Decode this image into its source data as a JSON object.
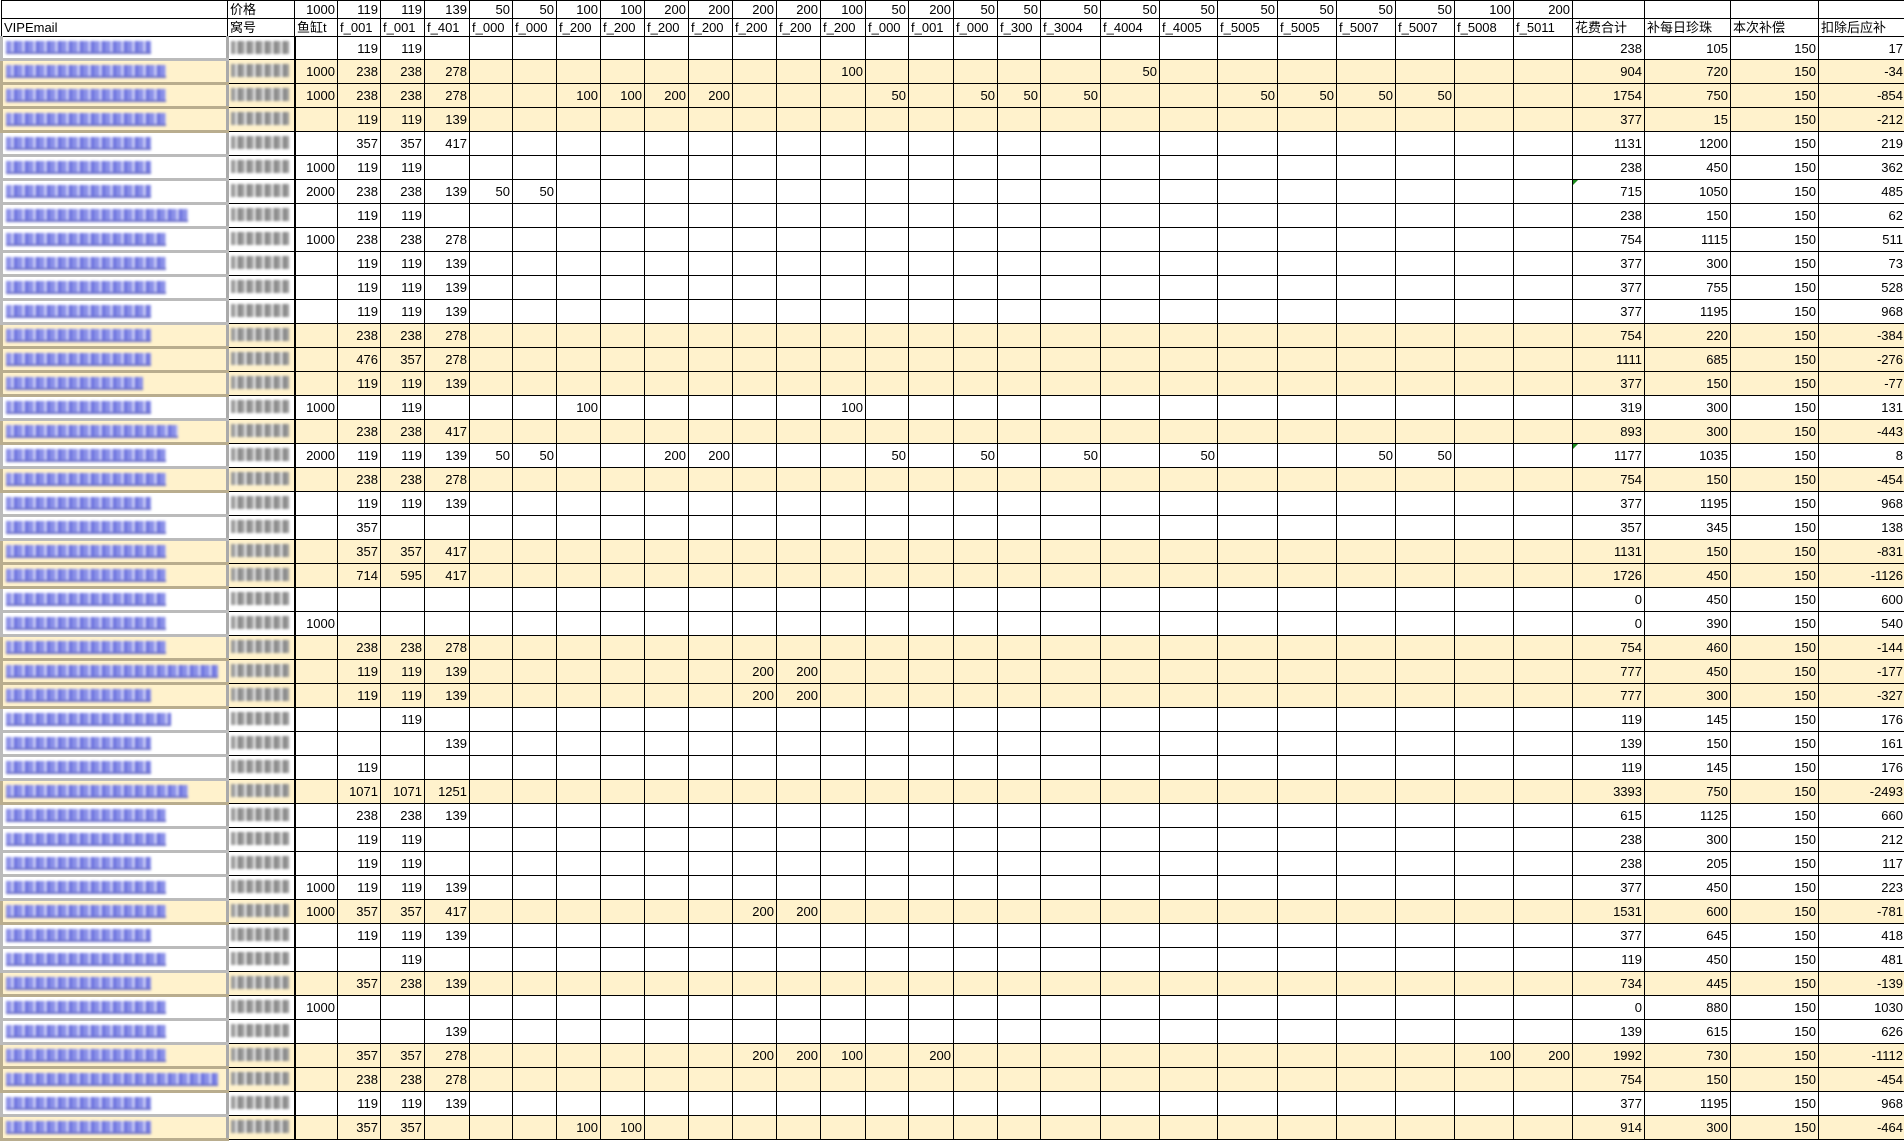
{
  "header": {
    "price_label": "价格",
    "email_label": "VIPEmail",
    "nest_label": "窝号",
    "prices": [
      1000,
      119,
      119,
      139,
      50,
      50,
      100,
      100,
      200,
      200,
      200,
      200,
      100,
      50,
      200,
      50,
      50,
      50,
      50,
      50,
      50,
      50,
      50,
      50,
      100,
      200
    ],
    "items": [
      "鱼缸t",
      "f_001",
      "f_001",
      "f_401",
      "f_000",
      "f_000",
      "f_200",
      "f_200",
      "f_200",
      "f_200",
      "f_200",
      "f_200",
      "f_200",
      "f_000",
      "f_001",
      "f_000",
      "f_300",
      "f_3004",
      "f_4004",
      "f_4005",
      "f_5005",
      "f_5005",
      "f_5007",
      "f_5007",
      "f_5008",
      "f_5011"
    ],
    "summary": [
      "花费合计",
      "补每日珍珠",
      "本次补偿",
      "扣除后应补"
    ]
  },
  "colors": {
    "highlight": "#fff2cc",
    "link": "#6a70dd",
    "marker": "#1a8a1a"
  },
  "rows": [
    {
      "hl": false,
      "cells": {
        "1": 119,
        "2": 119
      },
      "sum": [
        238,
        105,
        150,
        17
      ]
    },
    {
      "hl": true,
      "cells": {
        "0": 1000,
        "1": 238,
        "2": 238,
        "3": 278,
        "12": 100,
        "18": 50
      },
      "sum": [
        904,
        720,
        150,
        -34
      ]
    },
    {
      "hl": true,
      "cells": {
        "0": 1000,
        "1": 238,
        "2": 238,
        "3": 278,
        "6": 100,
        "7": 100,
        "8": 200,
        "9": 200,
        "13": 50,
        "15": 50,
        "16": 50,
        "17": 50,
        "20": 50,
        "21": 50,
        "22": 50,
        "23": 50
      },
      "sum": [
        1754,
        750,
        150,
        -854
      ]
    },
    {
      "hl": true,
      "cells": {
        "1": 119,
        "2": 119,
        "3": 139
      },
      "sum": [
        377,
        15,
        150,
        -212
      ]
    },
    {
      "hl": false,
      "cells": {
        "1": 357,
        "2": 357,
        "3": 417
      },
      "sum": [
        1131,
        1200,
        150,
        219
      ]
    },
    {
      "hl": false,
      "cells": {
        "0": 1000,
        "1": 119,
        "2": 119
      },
      "sum": [
        238,
        450,
        150,
        362
      ]
    },
    {
      "hl": false,
      "marker": true,
      "cells": {
        "0": 2000,
        "1": 238,
        "2": 238,
        "3": 139,
        "4": 50,
        "5": 50
      },
      "sum": [
        715,
        1050,
        150,
        485
      ]
    },
    {
      "hl": false,
      "cells": {
        "1": 119,
        "2": 119
      },
      "sum": [
        238,
        150,
        150,
        62
      ]
    },
    {
      "hl": false,
      "cells": {
        "0": 1000,
        "1": 238,
        "2": 238,
        "3": 278
      },
      "sum": [
        754,
        1115,
        150,
        511
      ]
    },
    {
      "hl": false,
      "cells": {
        "1": 119,
        "2": 119,
        "3": 139
      },
      "sum": [
        377,
        300,
        150,
        73
      ]
    },
    {
      "hl": false,
      "cells": {
        "1": 119,
        "2": 119,
        "3": 139
      },
      "sum": [
        377,
        755,
        150,
        528
      ]
    },
    {
      "hl": false,
      "cells": {
        "1": 119,
        "2": 119,
        "3": 139
      },
      "sum": [
        377,
        1195,
        150,
        968
      ]
    },
    {
      "hl": true,
      "cells": {
        "1": 238,
        "2": 238,
        "3": 278
      },
      "sum": [
        754,
        220,
        150,
        -384
      ]
    },
    {
      "hl": true,
      "cells": {
        "1": 476,
        "2": 357,
        "3": 278
      },
      "sum": [
        1111,
        685,
        150,
        -276
      ]
    },
    {
      "hl": true,
      "cells": {
        "1": 119,
        "2": 119,
        "3": 139
      },
      "sum": [
        377,
        150,
        150,
        -77
      ]
    },
    {
      "hl": false,
      "cells": {
        "0": 1000,
        "2": 119,
        "6": 100,
        "12": 100
      },
      "sum": [
        319,
        300,
        150,
        131
      ]
    },
    {
      "hl": true,
      "cells": {
        "1": 238,
        "2": 238,
        "3": 417
      },
      "sum": [
        893,
        300,
        150,
        -443
      ]
    },
    {
      "hl": false,
      "marker": true,
      "cells": {
        "0": 2000,
        "1": 119,
        "2": 119,
        "3": 139,
        "4": 50,
        "5": 50,
        "8": 200,
        "9": 200,
        "13": 50,
        "15": 50,
        "17": 50,
        "19": 50,
        "22": 50,
        "23": 50
      },
      "sum": [
        1177,
        1035,
        150,
        8
      ]
    },
    {
      "hl": true,
      "cells": {
        "1": 238,
        "2": 238,
        "3": 278
      },
      "sum": [
        754,
        150,
        150,
        -454
      ]
    },
    {
      "hl": false,
      "cells": {
        "1": 119,
        "2": 119,
        "3": 139
      },
      "sum": [
        377,
        1195,
        150,
        968
      ]
    },
    {
      "hl": false,
      "cells": {
        "1": 357
      },
      "sum": [
        357,
        345,
        150,
        138
      ]
    },
    {
      "hl": true,
      "cells": {
        "1": 357,
        "2": 357,
        "3": 417
      },
      "sum": [
        1131,
        150,
        150,
        -831
      ]
    },
    {
      "hl": true,
      "cells": {
        "1": 714,
        "2": 595,
        "3": 417
      },
      "sum": [
        1726,
        450,
        150,
        -1126
      ]
    },
    {
      "hl": false,
      "cells": {},
      "sum": [
        0,
        450,
        150,
        600
      ]
    },
    {
      "hl": false,
      "cells": {
        "0": 1000
      },
      "sum": [
        0,
        390,
        150,
        540
      ]
    },
    {
      "hl": true,
      "cells": {
        "1": 238,
        "2": 238,
        "3": 278
      },
      "sum": [
        754,
        460,
        150,
        -144
      ]
    },
    {
      "hl": true,
      "cells": {
        "1": 119,
        "2": 119,
        "3": 139,
        "10": 200,
        "11": 200
      },
      "sum": [
        777,
        450,
        150,
        -177
      ]
    },
    {
      "hl": true,
      "cells": {
        "1": 119,
        "2": 119,
        "3": 139,
        "10": 200,
        "11": 200
      },
      "sum": [
        777,
        300,
        150,
        -327
      ]
    },
    {
      "hl": false,
      "cells": {
        "2": 119
      },
      "sum": [
        119,
        145,
        150,
        176
      ]
    },
    {
      "hl": false,
      "cells": {
        "3": 139
      },
      "sum": [
        139,
        150,
        150,
        161
      ]
    },
    {
      "hl": false,
      "cells": {
        "1": 119
      },
      "sum": [
        119,
        145,
        150,
        176
      ]
    },
    {
      "hl": true,
      "cells": {
        "1": 1071,
        "2": 1071,
        "3": 1251
      },
      "sum": [
        3393,
        750,
        150,
        -2493
      ]
    },
    {
      "hl": false,
      "cells": {
        "1": 238,
        "2": 238,
        "3": 139
      },
      "sum": [
        615,
        1125,
        150,
        660
      ]
    },
    {
      "hl": false,
      "cells": {
        "1": 119,
        "2": 119
      },
      "sum": [
        238,
        300,
        150,
        212
      ]
    },
    {
      "hl": false,
      "cells": {
        "1": 119,
        "2": 119
      },
      "sum": [
        238,
        205,
        150,
        117
      ]
    },
    {
      "hl": false,
      "cells": {
        "0": 1000,
        "1": 119,
        "2": 119,
        "3": 139
      },
      "sum": [
        377,
        450,
        150,
        223
      ]
    },
    {
      "hl": true,
      "cells": {
        "0": 1000,
        "1": 357,
        "2": 357,
        "3": 417,
        "10": 200,
        "11": 200
      },
      "sum": [
        1531,
        600,
        150,
        -781
      ]
    },
    {
      "hl": false,
      "cells": {
        "1": 119,
        "2": 119,
        "3": 139
      },
      "sum": [
        377,
        645,
        150,
        418
      ]
    },
    {
      "hl": false,
      "cells": {
        "2": 119
      },
      "sum": [
        119,
        450,
        150,
        481
      ]
    },
    {
      "hl": true,
      "cells": {
        "1": 357,
        "2": 238,
        "3": 139
      },
      "sum": [
        734,
        445,
        150,
        -139
      ]
    },
    {
      "hl": false,
      "cells": {
        "0": 1000
      },
      "sum": [
        0,
        880,
        150,
        1030
      ]
    },
    {
      "hl": false,
      "cells": {
        "3": 139
      },
      "sum": [
        139,
        615,
        150,
        626
      ]
    },
    {
      "hl": true,
      "cells": {
        "1": 357,
        "2": 357,
        "3": 278,
        "10": 200,
        "11": 200,
        "12": 100,
        "14": 200,
        "24": 100,
        "25": 200
      },
      "sum": [
        1992,
        730,
        150,
        -1112
      ]
    },
    {
      "hl": true,
      "cells": {
        "1": 238,
        "2": 238,
        "3": 278
      },
      "sum": [
        754,
        150,
        150,
        -454
      ]
    },
    {
      "hl": false,
      "cells": {
        "1": 119,
        "2": 119,
        "3": 139
      },
      "sum": [
        377,
        1195,
        150,
        968
      ]
    },
    {
      "hl": true,
      "cells": {
        "1": 357,
        "2": 357,
        "6": 100,
        "7": 100
      },
      "sum": [
        914,
        300,
        150,
        -464
      ]
    }
  ]
}
